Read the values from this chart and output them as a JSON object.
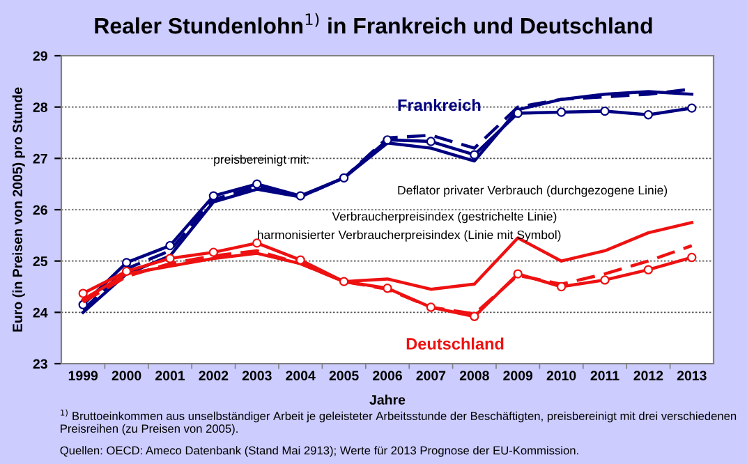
{
  "chart_data": {
    "type": "line",
    "title": "Realer Stundenlohn$^{1)}$ in Frankreich und Deutschland",
    "xlabel": "Jahre",
    "ylabel": "Euro (in Preisen von 2005) pro Stunde",
    "categories": [
      "1999",
      "2000",
      "2001",
      "2002",
      "2003",
      "2004",
      "2005",
      "2006",
      "2007",
      "2008",
      "2009",
      "2010",
      "2011",
      "2012",
      "2013"
    ],
    "series": [
      {
        "color": "#000080",
        "line_style": "solid",
        "marker": "none",
        "values": [
          24.0,
          24.75,
          25.1,
          26.15,
          26.4,
          26.25,
          26.62,
          27.3,
          27.2,
          26.95,
          27.95,
          28.15,
          28.25,
          28.3,
          28.25
        ]
      },
      {
        "color": "#000080",
        "line_style": "dashed",
        "marker": "none",
        "values": [
          24.05,
          24.85,
          25.2,
          26.2,
          26.45,
          26.25,
          26.62,
          27.4,
          27.45,
          27.2,
          28.0,
          28.15,
          28.2,
          28.25,
          28.35
        ]
      },
      {
        "color": "#000080",
        "line_style": "solid",
        "marker": "circle",
        "values": [
          24.15,
          24.97,
          25.3,
          26.27,
          26.5,
          26.27,
          26.62,
          27.36,
          27.33,
          27.07,
          27.88,
          27.9,
          27.92,
          27.85,
          27.98
        ]
      },
      {
        "color": "#ee1111",
        "line_style": "solid",
        "marker": "none",
        "values": [
          24.25,
          24.75,
          24.9,
          25.05,
          25.15,
          24.95,
          24.6,
          24.65,
          24.45,
          24.55,
          25.45,
          25.0,
          25.2,
          25.55,
          25.75
        ]
      },
      {
        "color": "#ee1111",
        "line_style": "dashed",
        "marker": "none",
        "values": [
          24.2,
          24.7,
          24.95,
          25.1,
          25.2,
          24.95,
          24.6,
          24.45,
          24.1,
          23.97,
          24.72,
          24.55,
          24.75,
          25.0,
          25.3
        ]
      },
      {
        "color": "#ee1111",
        "line_style": "solid",
        "marker": "circle",
        "values": [
          24.37,
          24.8,
          25.05,
          25.17,
          25.35,
          25.02,
          24.6,
          24.47,
          24.1,
          23.92,
          24.75,
          24.5,
          24.63,
          24.83,
          25.07
        ]
      }
    ],
    "ylim": [
      23,
      29
    ],
    "yticks": [
      23,
      24,
      25,
      26,
      27,
      28,
      29
    ],
    "grid": "y",
    "legend": false,
    "annotations": [
      "Frankreich",
      "preisbereinigt mit:",
      "Deflator privater Verbrauch (durchgezogene Linie)",
      "Verbraucherpreisindex (gestrichelte Linie)",
      "harmonisierter Verbraucherpreisindex (Linie mit Symbol)",
      "Deutschland",
      "$^{1)}$ Bruttoeinkommen aus unselbständiger Arbeit je geleisteter Arbeitsstunde der Beschäftigten, preisbereinigt mit drei verschiedenen Preisreihen (zu Preisen von 2005).",
      "Quellen: OECD: Ameco Datenbank (Stand Mai 2913); Werte für 2013 Prognose der EU-Kommission."
    ]
  }
}
